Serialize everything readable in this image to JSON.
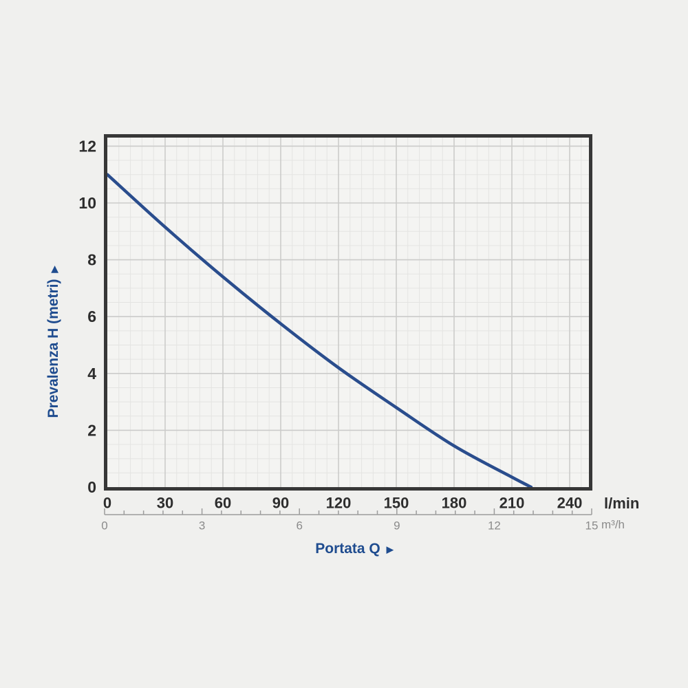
{
  "page": {
    "background": "#f0f0ee"
  },
  "chart_data": {
    "type": "line",
    "title": "",
    "x_title": "Portata Q",
    "arrow": "▶",
    "x_axis_primary": {
      "unit": "l/min",
      "ticks": [
        0,
        30,
        60,
        90,
        120,
        150,
        180,
        210,
        240
      ],
      "range": [
        0,
        250
      ],
      "major_step": 30,
      "minor_step": 6
    },
    "x_axis_secondary": {
      "unit": "m³/h",
      "ticks": [
        0,
        3,
        6,
        9,
        12,
        15
      ],
      "range": [
        0,
        15
      ],
      "tick_step": 0.6
    },
    "y_axis": {
      "title": "Prevalenza H (metri)",
      "ticks": [
        12,
        10,
        8,
        6,
        4,
        2,
        0
      ],
      "range": [
        0,
        12.3
      ],
      "major_step": 2,
      "minor_step": 0.5
    },
    "series": [
      {
        "name": "pump-head-curve",
        "color": "#2a4d8d",
        "points": [
          [
            0,
            11
          ],
          [
            30,
            9.15
          ],
          [
            60,
            7.4
          ],
          [
            90,
            5.75
          ],
          [
            120,
            4.2
          ],
          [
            150,
            2.8
          ],
          [
            180,
            1.45
          ],
          [
            210,
            0.35
          ],
          [
            220,
            0
          ]
        ]
      }
    ],
    "legend": {
      "visible": false
    },
    "grid": "on",
    "colors": {
      "plot_bg": "#f4f4f2",
      "grid_minor": "#e4e4e2",
      "grid_major": "#cbcbca",
      "border": "#373737",
      "axis_text": "#2d2d2d",
      "secondary_text": "#8b8b8b",
      "secondary_line": "#9c9c9c",
      "title_blue": "#1f4c8f"
    }
  }
}
